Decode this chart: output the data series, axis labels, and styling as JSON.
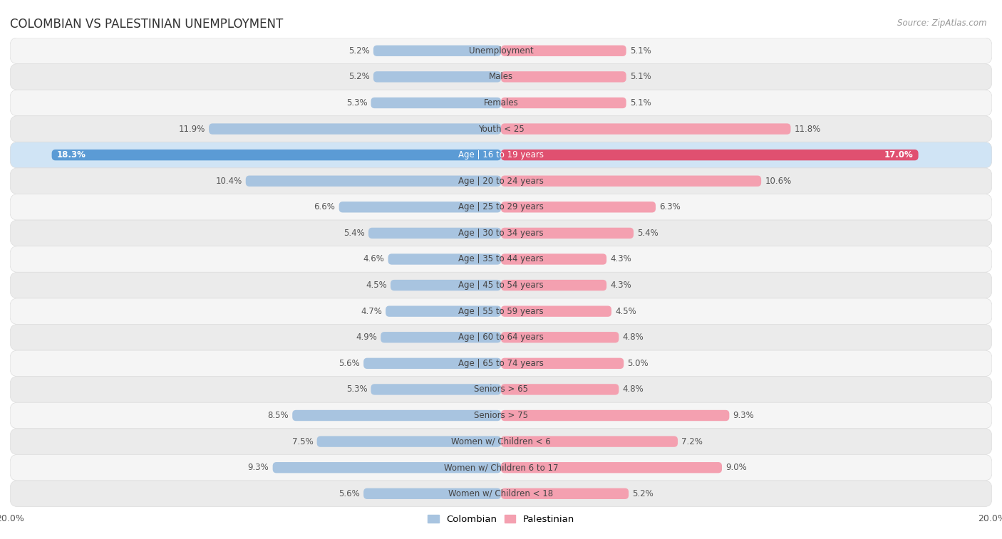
{
  "title": "COLOMBIAN VS PALESTINIAN UNEMPLOYMENT",
  "source": "Source: ZipAtlas.com",
  "categories": [
    "Unemployment",
    "Males",
    "Females",
    "Youth < 25",
    "Age | 16 to 19 years",
    "Age | 20 to 24 years",
    "Age | 25 to 29 years",
    "Age | 30 to 34 years",
    "Age | 35 to 44 years",
    "Age | 45 to 54 years",
    "Age | 55 to 59 years",
    "Age | 60 to 64 years",
    "Age | 65 to 74 years",
    "Seniors > 65",
    "Seniors > 75",
    "Women w/ Children < 6",
    "Women w/ Children 6 to 17",
    "Women w/ Children < 18"
  ],
  "colombian": [
    5.2,
    5.2,
    5.3,
    11.9,
    18.3,
    10.4,
    6.6,
    5.4,
    4.6,
    4.5,
    4.7,
    4.9,
    5.6,
    5.3,
    8.5,
    7.5,
    9.3,
    5.6
  ],
  "palestinian": [
    5.1,
    5.1,
    5.1,
    11.8,
    17.0,
    10.6,
    6.3,
    5.4,
    4.3,
    4.3,
    4.5,
    4.8,
    5.0,
    4.8,
    9.3,
    7.2,
    9.0,
    5.2
  ],
  "colombian_color_normal": "#a8c4e0",
  "colombian_color_highlight": "#5b9bd5",
  "palestinian_color_normal": "#f4a0b0",
  "palestinian_color_highlight": "#e05070",
  "highlight_row": "Age | 16 to 19 years",
  "row_bg_even": "#f5f5f5",
  "row_bg_odd": "#ebebeb",
  "row_border_color": "#dddddd",
  "label_color": "#555555",
  "category_color_normal": "#444444",
  "category_color_highlight": "#ffffff",
  "axis_max": 20.0,
  "legend_colombian": "Colombian",
  "legend_palestinian": "Palestinian",
  "title_fontsize": 12,
  "source_fontsize": 8.5,
  "label_fontsize": 8.5,
  "category_fontsize": 8.5
}
